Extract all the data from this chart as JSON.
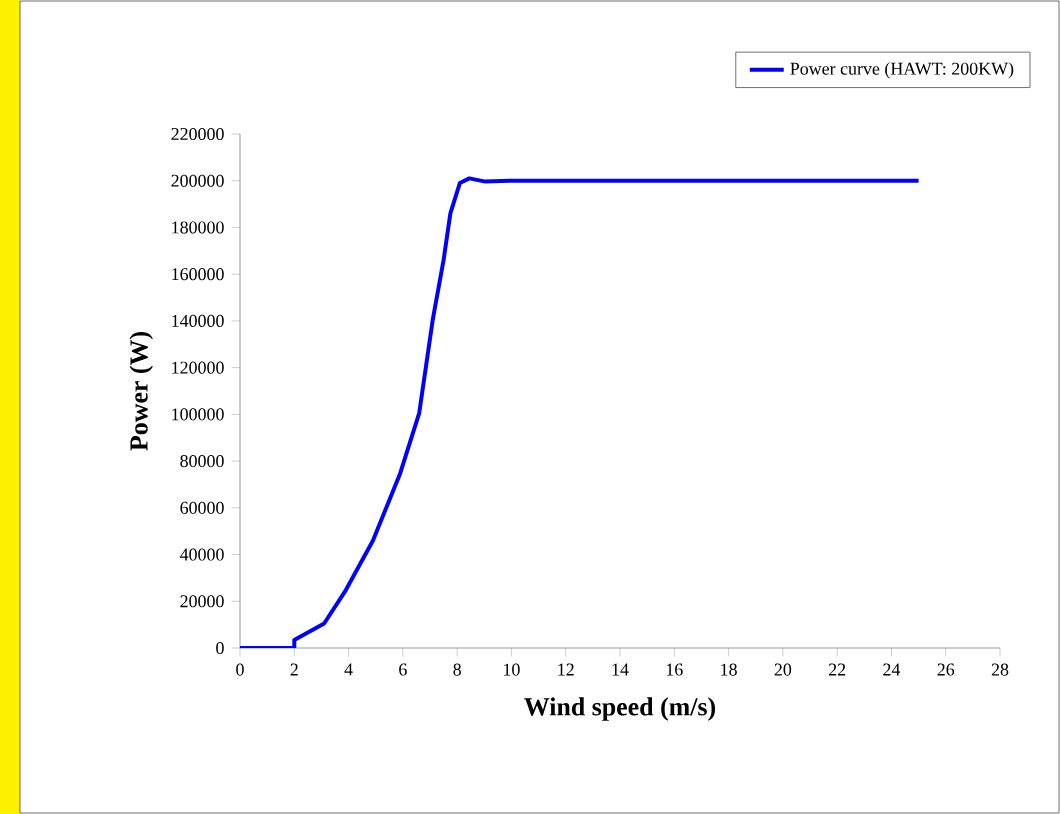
{
  "chart_data": {
    "type": "line",
    "xlabel": "Wind speed (m/s)",
    "ylabel": "Power (W)",
    "xlim": [
      0,
      28
    ],
    "ylim": [
      0,
      220000
    ],
    "xticks": [
      0,
      2,
      4,
      6,
      8,
      10,
      12,
      14,
      16,
      18,
      20,
      22,
      24,
      26,
      28
    ],
    "yticks": [
      0,
      20000,
      40000,
      60000,
      80000,
      100000,
      120000,
      140000,
      160000,
      180000,
      200000,
      220000
    ],
    "legend": "top right",
    "marker": "none",
    "line_style": "solid",
    "series": [
      {
        "name": "Power curve (HAWT: 200KW)",
        "color": "#0000ff",
        "x": [
          0,
          1,
          2,
          2,
          3.1,
          3.9,
          4.9,
          5.9,
          6.6,
          7.1,
          7.5,
          7.75,
          8.1,
          8.45,
          9,
          10,
          15,
          20,
          25
        ],
        "values": [
          0,
          0,
          0,
          3400,
          10500,
          24800,
          46000,
          74700,
          100400,
          140400,
          166000,
          186000,
          199000,
          201000,
          199700,
          200000,
          200000,
          200000,
          200000
        ]
      }
    ]
  }
}
